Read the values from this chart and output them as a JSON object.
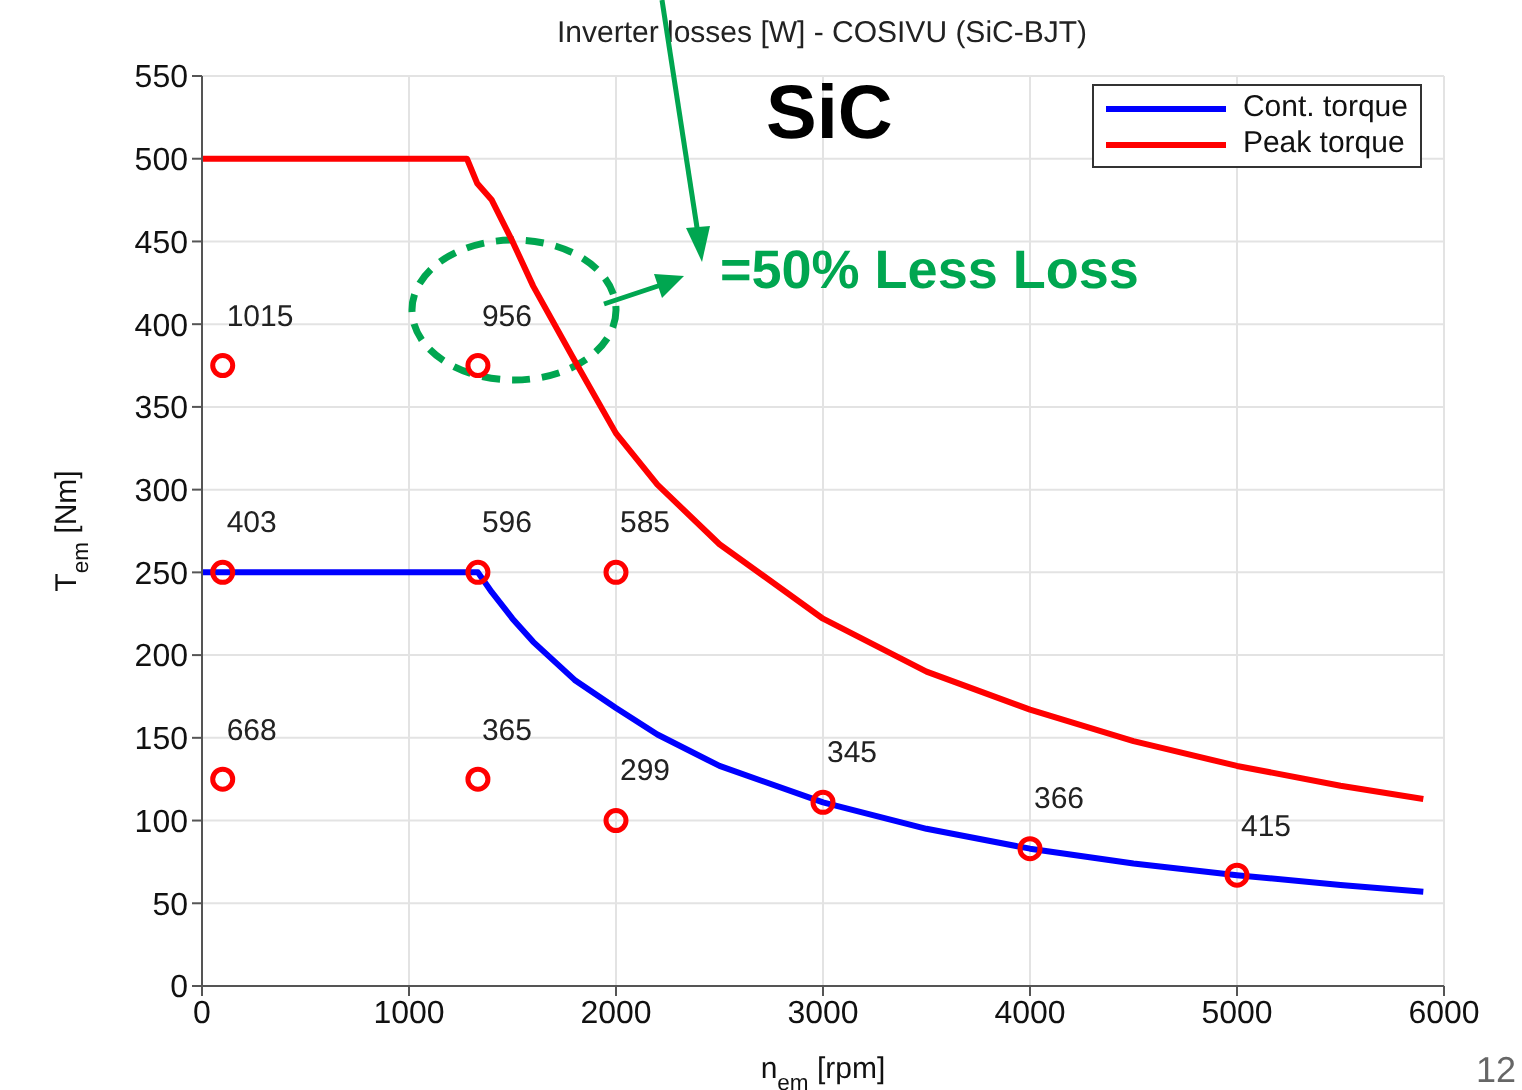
{
  "chart_data": {
    "type": "line",
    "title": "Inverter losses [W] - COSIVU (SiC-BJT)",
    "xlabel": "n$_{em}$ [rpm]",
    "ylabel": "T$_{em}$ [Nm]",
    "xlim": [
      0,
      6000
    ],
    "xticks": [
      0,
      1000,
      2000,
      3000,
      4000,
      5000,
      6000
    ],
    "ylim": [
      0,
      550
    ],
    "yticks": [
      0,
      50,
      100,
      150,
      200,
      250,
      300,
      350,
      400,
      450,
      500,
      550
    ],
    "grid": true,
    "legend": "top right",
    "series": [
      {
        "name": "Cont. torque",
        "color": "#0000ff",
        "x": [
          0,
          1300,
          1333,
          1400,
          1500,
          1600,
          1800,
          2000,
          2200,
          2500,
          3000,
          3500,
          4000,
          4500,
          5000,
          5500,
          5900
        ],
        "values": [
          250,
          250,
          250,
          238,
          222,
          208,
          185,
          168,
          152,
          133,
          111,
          95,
          83,
          74,
          67,
          61,
          57
        ]
      },
      {
        "name": "Peak torque",
        "color": "#ff0000",
        "x": [
          0,
          1280,
          1330,
          1400,
          1500,
          1600,
          1800,
          2000,
          2200,
          2500,
          3000,
          3500,
          4000,
          4500,
          5000,
          5500,
          5900
        ],
        "values": [
          500,
          500,
          485,
          475,
          450,
          423,
          378,
          334,
          303,
          267,
          222,
          190,
          167,
          148,
          133,
          121,
          113
        ]
      },
      {
        "type": "scatter",
        "color": "#ff0000",
        "marker": "circle",
        "x": [
          100,
          1333,
          100,
          1333,
          2000,
          100,
          1333,
          2000,
          3000,
          4000,
          5000
        ],
        "values": [
          375,
          375,
          250,
          250,
          250,
          125,
          125,
          100,
          111,
          83,
          67
        ]
      }
    ],
    "annotations": [
      "SiC",
      "=50% Less Loss",
      "12",
      {
        "text": "1015",
        "x": 100,
        "y": 375
      },
      {
        "text": "956",
        "x": 1333,
        "y": 375
      },
      {
        "text": "403",
        "x": 100,
        "y": 250
      },
      {
        "text": "596",
        "x": 1333,
        "y": 250
      },
      {
        "text": "585",
        "x": 2000,
        "y": 250
      },
      {
        "text": "668",
        "x": 100,
        "y": 125
      },
      {
        "text": "365",
        "x": 1333,
        "y": 125
      },
      {
        "text": "299",
        "x": 2000,
        "y": 100
      },
      {
        "text": "345",
        "x": 3000,
        "y": 111
      },
      {
        "text": "366",
        "x": 4000,
        "y": 83
      },
      {
        "text": "415",
        "x": 5000,
        "y": 67
      }
    ]
  }
}
